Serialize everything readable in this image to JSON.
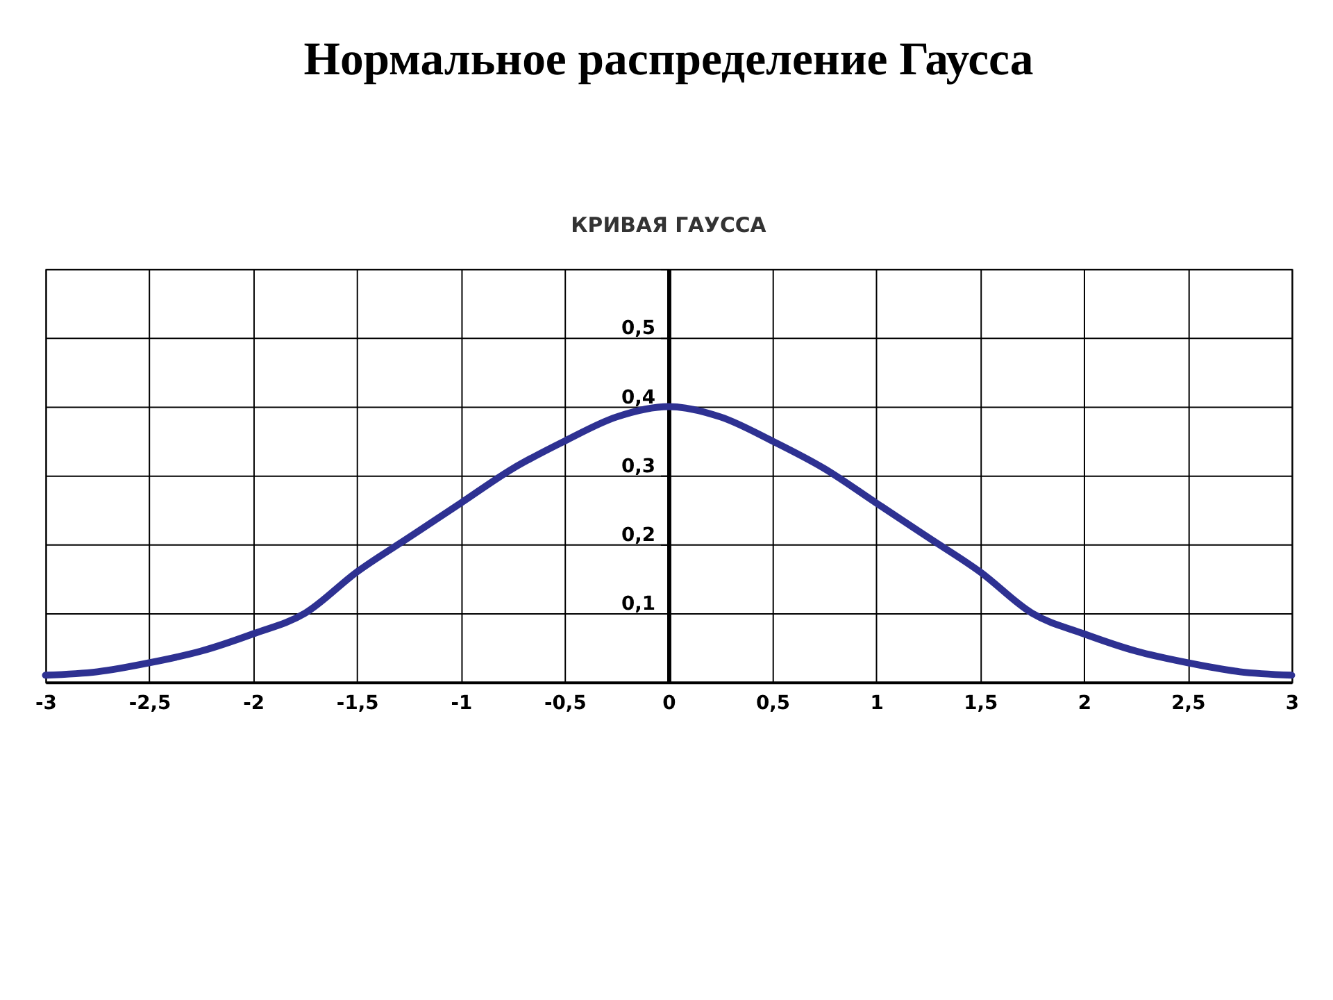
{
  "chart_data": {
    "type": "line",
    "title": "Нормальное распределение Гаусса",
    "subtitle": "КРИВАЯ ГАУССА",
    "x": [
      -3,
      -2.75,
      -2.5,
      -2.25,
      -2,
      -1.75,
      -1.5,
      -1.25,
      -1,
      -0.75,
      -0.5,
      -0.25,
      0,
      0.25,
      0.5,
      0.75,
      1,
      1.25,
      1.5,
      1.75,
      2,
      2.25,
      2.5,
      2.75,
      3
    ],
    "series": [
      {
        "color": "#2e3192",
        "values": [
          0.01,
          0.015,
          0.028,
          0.045,
          0.07,
          0.1,
          0.16,
          0.21,
          0.26,
          0.31,
          0.35,
          0.385,
          0.4,
          0.385,
          0.35,
          0.31,
          0.26,
          0.21,
          0.16,
          0.1,
          0.07,
          0.045,
          0.028,
          0.015,
          0.01
        ]
      }
    ],
    "xlim": [
      -3,
      3
    ],
    "xticks": [
      -3,
      {
        "value": -2.5,
        "label": "-2,5"
      },
      -2,
      {
        "value": -1.5,
        "label": "-1,5"
      },
      -1,
      {
        "value": -0.5,
        "label": "-0,5"
      },
      0,
      {
        "value": 0.5,
        "label": "0,5"
      },
      1,
      {
        "value": 1.5,
        "label": "1,5"
      },
      2,
      {
        "value": 2.5,
        "label": "2,5"
      },
      3
    ],
    "ylim": [
      0,
      0.6
    ],
    "yticks": [
      {
        "value": 0,
        "label": null
      },
      {
        "value": 0.1,
        "label": "0,1"
      },
      {
        "value": 0.2,
        "label": "0,2"
      },
      {
        "value": 0.3,
        "label": "0,3"
      },
      {
        "value": 0.4,
        "label": "0,4"
      },
      {
        "value": 0.5,
        "label": "0,5"
      },
      {
        "value": 0.6,
        "label": null
      }
    ],
    "grid": true,
    "marker": "none",
    "line_style": "solid"
  }
}
